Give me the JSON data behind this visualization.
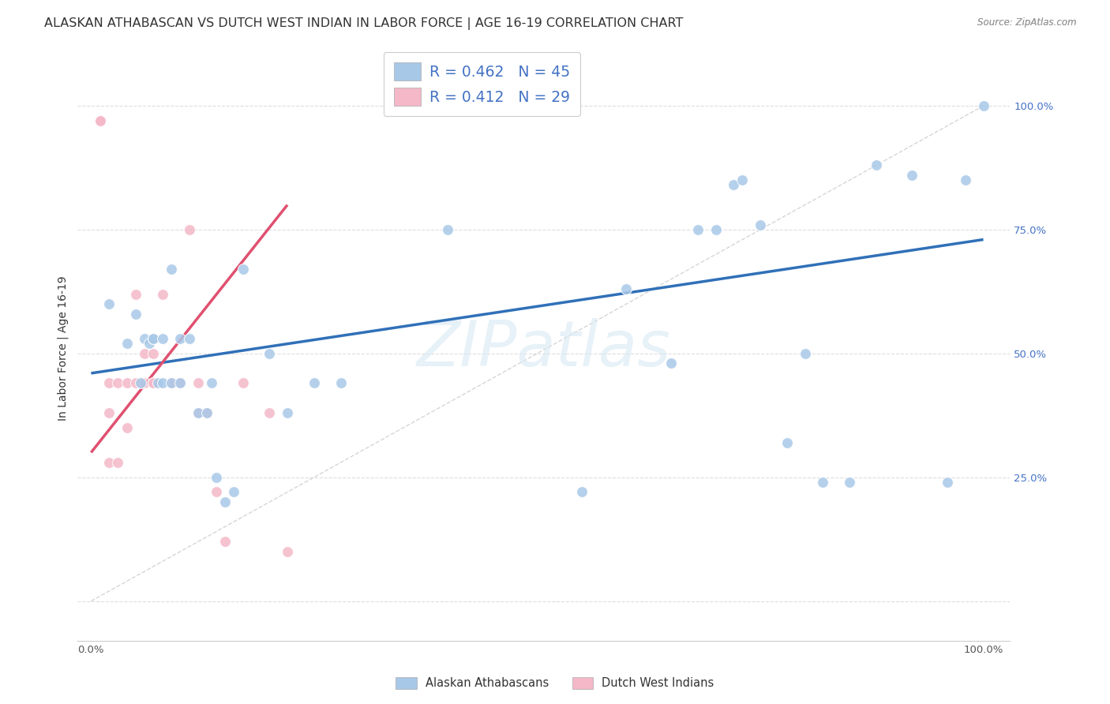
{
  "title": "ALASKAN ATHABASCAN VS DUTCH WEST INDIAN IN LABOR FORCE | AGE 16-19 CORRELATION CHART",
  "source": "Source: ZipAtlas.com",
  "ylabel": "In Labor Force | Age 16-19",
  "blue_r": "0.462",
  "blue_n": "45",
  "pink_r": "0.412",
  "pink_n": "29",
  "blue_color": "#a8c8e8",
  "pink_color": "#f4b8c8",
  "blue_line_color": "#3070b8",
  "pink_line_color": "#e05070",
  "ref_line_color": "#cccccc",
  "watermark_color": "#d8e8f4",
  "watermark_text": "ZIPatlas",
  "legend_blue_label": "R = 0.462   N = 45",
  "legend_pink_label": "R = 0.412   N = 29",
  "bottom_legend_blue": "Alaskan Athabascans",
  "bottom_legend_pink": "Dutch West Indians",
  "title_fontsize": 11.5,
  "tick_fontsize": 9.5,
  "marker_size": 100,
  "blue_scatter_x": [
    0.02,
    0.04,
    0.05,
    0.055,
    0.06,
    0.065,
    0.07,
    0.07,
    0.075,
    0.08,
    0.08,
    0.09,
    0.09,
    0.1,
    0.1,
    0.11,
    0.12,
    0.13,
    0.135,
    0.14,
    0.15,
    0.16,
    0.17,
    0.2,
    0.22,
    0.25,
    0.28,
    0.4,
    0.55,
    0.6,
    0.65,
    0.68,
    0.7,
    0.72,
    0.73,
    0.75,
    0.78,
    0.8,
    0.82,
    0.85,
    0.88,
    0.92,
    0.96,
    0.98,
    1.0
  ],
  "blue_scatter_y": [
    0.6,
    0.52,
    0.58,
    0.44,
    0.53,
    0.52,
    0.53,
    0.53,
    0.44,
    0.53,
    0.44,
    0.67,
    0.44,
    0.44,
    0.53,
    0.53,
    0.38,
    0.38,
    0.44,
    0.25,
    0.2,
    0.22,
    0.67,
    0.5,
    0.38,
    0.44,
    0.44,
    0.75,
    0.22,
    0.63,
    0.48,
    0.75,
    0.75,
    0.84,
    0.85,
    0.76,
    0.32,
    0.5,
    0.24,
    0.24,
    0.88,
    0.86,
    0.24,
    0.85,
    1.0
  ],
  "pink_scatter_x": [
    0.01,
    0.01,
    0.01,
    0.02,
    0.02,
    0.02,
    0.03,
    0.03,
    0.04,
    0.04,
    0.05,
    0.05,
    0.06,
    0.06,
    0.07,
    0.07,
    0.07,
    0.08,
    0.09,
    0.1,
    0.11,
    0.12,
    0.12,
    0.13,
    0.14,
    0.15,
    0.17,
    0.2,
    0.22
  ],
  "pink_scatter_y": [
    0.97,
    0.97,
    0.97,
    0.44,
    0.28,
    0.38,
    0.44,
    0.28,
    0.44,
    0.35,
    0.44,
    0.62,
    0.44,
    0.5,
    0.44,
    0.5,
    0.44,
    0.62,
    0.44,
    0.44,
    0.75,
    0.44,
    0.38,
    0.38,
    0.22,
    0.12,
    0.44,
    0.38,
    0.1
  ],
  "blue_line_endpoints": [
    0.0,
    1.0,
    0.46,
    0.73
  ],
  "pink_line_endpoints": [
    0.0,
    0.22,
    0.3,
    0.8
  ]
}
